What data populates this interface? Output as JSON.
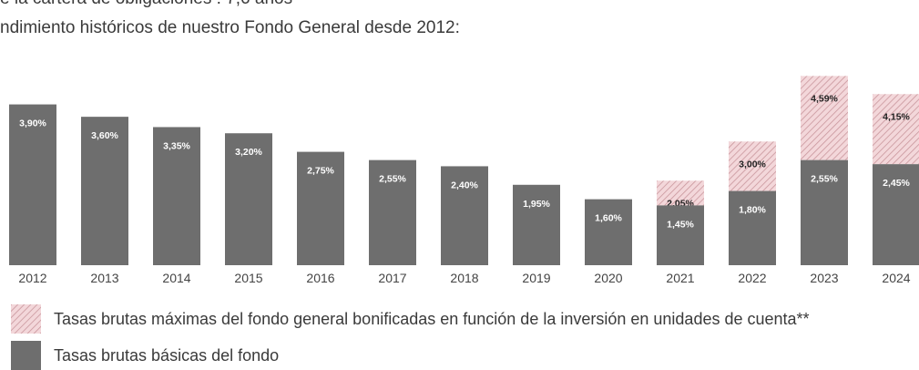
{
  "intro": {
    "line1": "e la cartera de obligaciones : 7,6 años",
    "line2": "ndimiento históricos de nuestro Fondo General desde 2012:"
  },
  "chart_data": {
    "type": "bar",
    "stacked": true,
    "categories": [
      "2012",
      "2013",
      "2014",
      "2015",
      "2016",
      "2017",
      "2018",
      "2019",
      "2020",
      "2021",
      "2022",
      "2023",
      "2024"
    ],
    "ylim": [
      0,
      6.3
    ],
    "series": [
      {
        "name": "Tasas brutas básicas del fondo",
        "color": "#6e6e6e",
        "values": [
          3.9,
          3.6,
          3.35,
          3.2,
          2.75,
          2.55,
          2.4,
          1.95,
          1.6,
          1.45,
          1.8,
          2.55,
          2.45
        ],
        "labels": [
          "3,90%",
          "3,60%",
          "3,35%",
          "3,20%",
          "2,75%",
          "2,55%",
          "2,40%",
          "1,95%",
          "1,60%",
          "1,45%",
          "1,80%",
          "2,55%",
          "2,45%"
        ]
      },
      {
        "name": "Tasas brutas máximas del fondo general bonificadas en función de la inversión en unidades de cuenta**",
        "color": "#f3d7da",
        "hatch_color": "#c9969c",
        "pattern": "diagonal-hatch",
        "totals": [
          null,
          null,
          null,
          null,
          null,
          null,
          null,
          null,
          null,
          2.05,
          3.0,
          4.59,
          4.15
        ],
        "labels": [
          null,
          null,
          null,
          null,
          null,
          null,
          null,
          null,
          null,
          "2,05%",
          "3,00%",
          "4,59%",
          "4,15%"
        ]
      }
    ],
    "legend": [
      {
        "label": "Tasas brutas máximas del fondo general bonificadas en función de la inversión en unidades de cuenta**",
        "swatch": "hatch"
      },
      {
        "label": "Tasas brutas básicas del fondo",
        "swatch": "solid"
      }
    ],
    "legend_position": "bottom-left",
    "grid": false
  }
}
